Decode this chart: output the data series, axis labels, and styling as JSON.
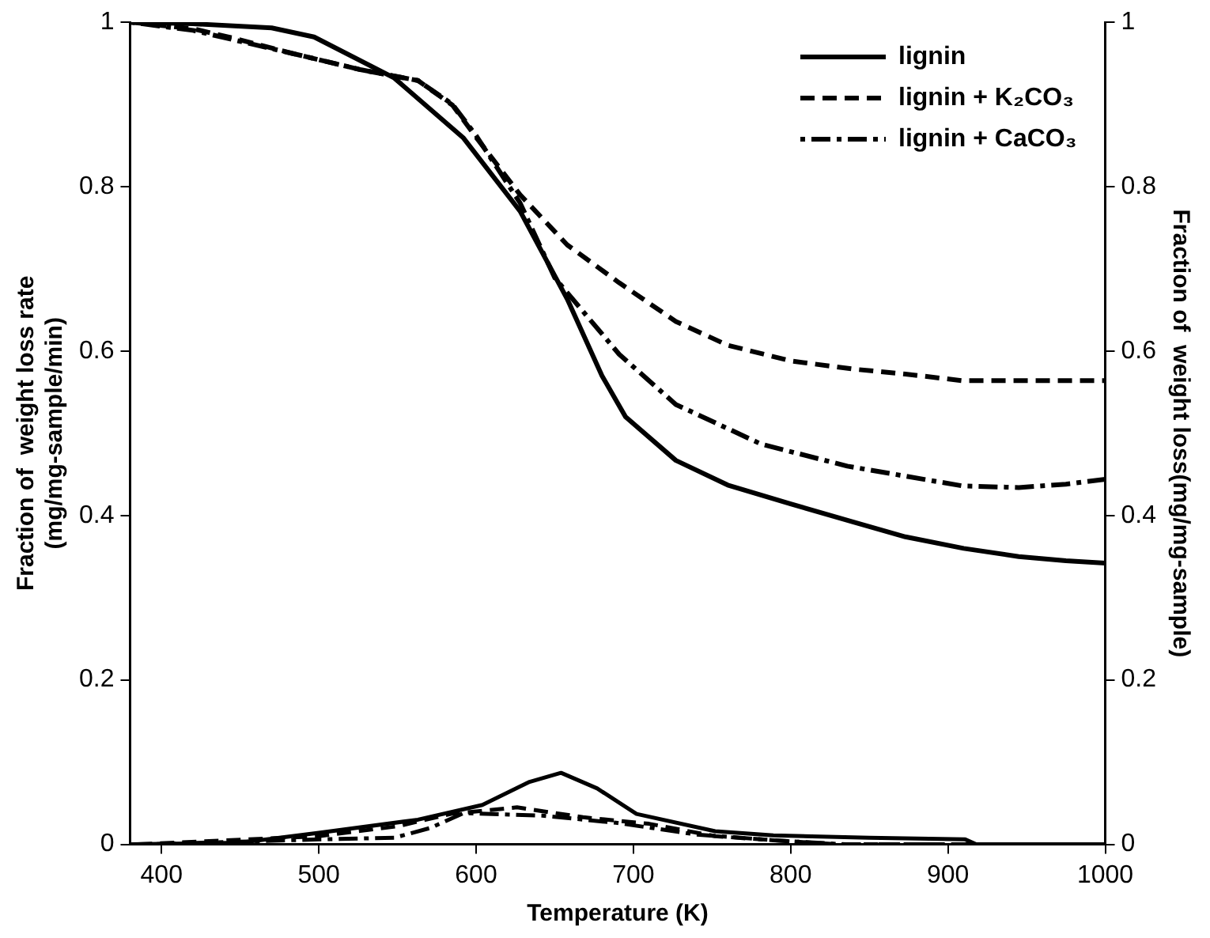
{
  "chart_data": {
    "type": "line",
    "xlabel": "Temperature (K)",
    "ylabel": "Fraction of  weight loss rate\n(mg/mg-sample/min)",
    "y2label": "Fraction of  weight loss(mg/mg-sample)",
    "xlim": [
      380,
      1000
    ],
    "xticks": [
      400,
      500,
      600,
      700,
      800,
      900,
      1000
    ],
    "ylim": [
      0,
      1
    ],
    "yticks": [
      0,
      0.2,
      0.4,
      0.6,
      0.8,
      1
    ],
    "y2lim": [
      0,
      1
    ],
    "y2ticks": [
      0,
      0.2,
      0.4,
      0.6,
      0.8,
      1
    ],
    "grid": false,
    "legend": "top right",
    "marker": "none",
    "series": [
      {
        "name": "lignin",
        "color": "#000000",
        "line_style": "solid",
        "axis": "y2",
        "x": [
          380,
          420,
          470,
          497,
          548,
          592,
          628,
          658,
          680,
          695,
          727,
          760,
          800,
          840,
          873,
          910,
          945,
          975,
          1000
        ],
        "values": [
          1.0,
          0.998,
          0.993,
          0.982,
          0.932,
          0.859,
          0.77,
          0.663,
          0.57,
          0.52,
          0.467,
          0.437,
          0.414,
          0.392,
          0.374,
          0.36,
          0.35,
          0.345,
          0.342
        ]
      },
      {
        "name": "lignin + K₂CO₃",
        "color": "#000000",
        "line_style": "dashed",
        "axis": "y2",
        "x": [
          380,
          420,
          447,
          483,
          527,
          563,
          585,
          600,
          628,
          658,
          691,
          727,
          760,
          800,
          840,
          873,
          909,
          950,
          1000
        ],
        "values": [
          1.0,
          0.992,
          0.98,
          0.962,
          0.942,
          0.929,
          0.899,
          0.86,
          0.79,
          0.729,
          0.683,
          0.636,
          0.607,
          0.588,
          0.578,
          0.572,
          0.564,
          0.564,
          0.564
        ]
      },
      {
        "name": "lignin + CaCO₃",
        "color": "#000000",
        "line_style": "dashdot",
        "axis": "y2",
        "x": [
          380,
          420,
          447,
          483,
          527,
          563,
          585,
          600,
          628,
          650,
          691,
          727,
          781,
          836,
          909,
          945,
          975,
          1000
        ],
        "values": [
          1.0,
          0.99,
          0.978,
          0.962,
          0.942,
          0.929,
          0.9,
          0.862,
          0.78,
          0.689,
          0.596,
          0.535,
          0.487,
          0.46,
          0.436,
          0.434,
          0.438,
          0.444
        ]
      },
      {
        "color": "#000000",
        "line_style": "solid",
        "axis": "y",
        "x": [
          380,
          450,
          500,
          563,
          604,
          634,
          654,
          677,
          702,
          752,
          789,
          850,
          911,
          918,
          1000
        ],
        "values": [
          0,
          0.002,
          0.014,
          0.03,
          0.048,
          0.076,
          0.087,
          0.068,
          0.037,
          0.016,
          0.011,
          0.008,
          0.006,
          0,
          0
        ]
      },
      {
        "color": "#000000",
        "line_style": "dashed",
        "axis": "y",
        "x": [
          385,
          500,
          550,
          584,
          626,
          668,
          710,
          752,
          789,
          830,
          995
        ],
        "values": [
          0,
          0.01,
          0.022,
          0.037,
          0.045,
          0.033,
          0.025,
          0.01,
          0.005,
          0,
          0
        ]
      },
      {
        "color": "#000000",
        "line_style": "dashdot",
        "axis": "y",
        "x": [
          390,
          500,
          548,
          571,
          592,
          642,
          690,
          740,
          789,
          835,
          990
        ],
        "values": [
          0,
          0.006,
          0.008,
          0.02,
          0.038,
          0.035,
          0.026,
          0.012,
          0.005,
          0,
          0
        ]
      }
    ]
  }
}
